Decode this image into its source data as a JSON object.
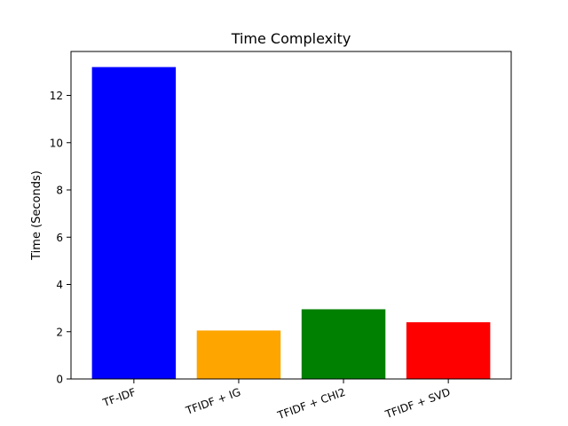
{
  "chart_data": {
    "type": "bar",
    "title": "Time Complexity",
    "xlabel": "",
    "ylabel": "Time (Seconds)",
    "categories": [
      "TF-IDF",
      "TFIDF + IG",
      "TFIDF + CHI2",
      "TFIDF + SVD"
    ],
    "values": [
      13.2,
      2.05,
      2.95,
      2.4
    ],
    "colors": [
      "#0000ff",
      "#ffa500",
      "#008000",
      "#ff0000"
    ],
    "ylim": [
      0,
      13.86
    ],
    "yticks": [
      0,
      2,
      4,
      6,
      8,
      10,
      12
    ],
    "grid": false,
    "legend": "none"
  }
}
